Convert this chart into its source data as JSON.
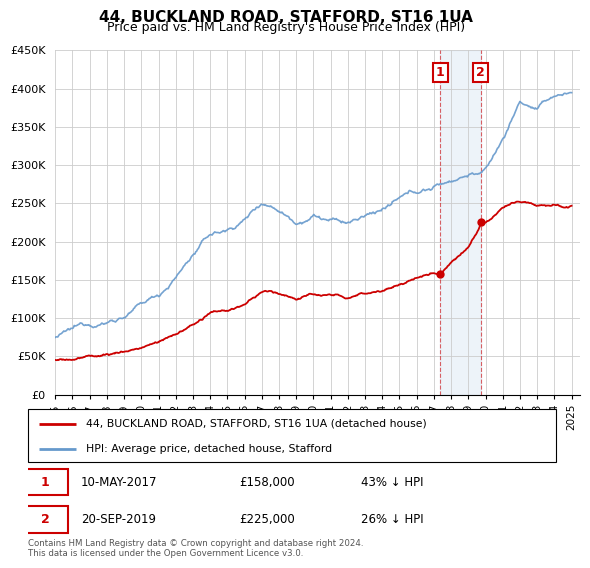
{
  "title": "44, BUCKLAND ROAD, STAFFORD, ST16 1UA",
  "subtitle": "Price paid vs. HM Land Registry's House Price Index (HPI)",
  "footnote": "Contains HM Land Registry data © Crown copyright and database right 2024.\nThis data is licensed under the Open Government Licence v3.0.",
  "legend_red": "44, BUCKLAND ROAD, STAFFORD, ST16 1UA (detached house)",
  "legend_blue": "HPI: Average price, detached house, Stafford",
  "sale1_date": "10-MAY-2017",
  "sale1_price": "£158,000",
  "sale1_pct": "43% ↓ HPI",
  "sale1_x": 2017.36,
  "sale1_y": 158000,
  "sale2_date": "20-SEP-2019",
  "sale2_price": "£225,000",
  "sale2_pct": "26% ↓ HPI",
  "sale2_x": 2019.72,
  "sale2_y": 225000,
  "ylim": [
    0,
    450000
  ],
  "xlim": [
    1995,
    2025.5
  ],
  "yticks": [
    0,
    50000,
    100000,
    150000,
    200000,
    250000,
    300000,
    350000,
    400000,
    450000
  ],
  "ytick_labels": [
    "£0",
    "£50K",
    "£100K",
    "£150K",
    "£200K",
    "£250K",
    "£300K",
    "£350K",
    "£400K",
    "£450K"
  ],
  "xticks": [
    1995,
    1996,
    1997,
    1998,
    1999,
    2000,
    2001,
    2002,
    2003,
    2004,
    2005,
    2006,
    2007,
    2008,
    2009,
    2010,
    2011,
    2012,
    2013,
    2014,
    2015,
    2016,
    2017,
    2018,
    2019,
    2020,
    2021,
    2022,
    2023,
    2024,
    2025
  ],
  "line_red_color": "#cc0000",
  "line_blue_color": "#6699cc",
  "highlight_bg_color": "#ccddf0",
  "box_color": "#cc0000",
  "grid_color": "#cccccc",
  "bg_color": "#ffffff",
  "title_fontsize": 11,
  "subtitle_fontsize": 9,
  "tick_fontsize": 8,
  "xtick_fontsize": 7.5
}
